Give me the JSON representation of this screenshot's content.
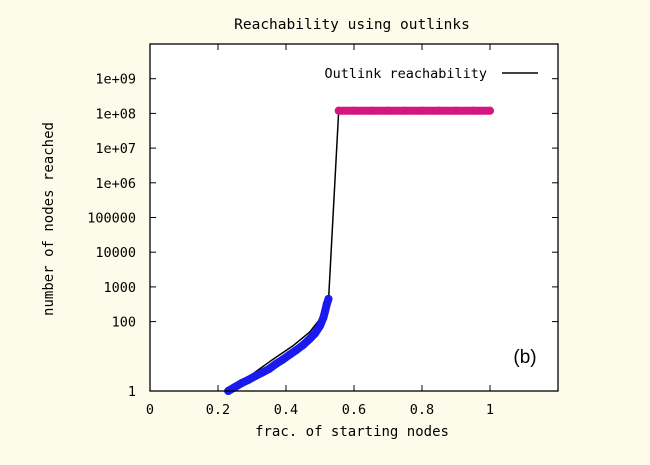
{
  "chart_data": {
    "type": "line",
    "title": "Reachability using outlinks",
    "xlabel": "frac. of starting nodes",
    "ylabel": "number of nodes reached",
    "xlim": [
      0,
      1.2
    ],
    "ylim": [
      1,
      10000000000
    ],
    "yscale": "log",
    "xticks": [
      0,
      0.2,
      0.4,
      0.6,
      0.8,
      1
    ],
    "xtick_labels": [
      "0",
      "0.2",
      "0.4",
      "0.6",
      "0.8",
      "1"
    ],
    "yticks": [
      1,
      100,
      1000,
      10000,
      100000,
      1000000,
      10000000,
      100000000,
      1000000000
    ],
    "ytick_labels": [
      "1",
      "100",
      "1000",
      "10000",
      "100000",
      "1e+06",
      "1e+07",
      "1e+08",
      "1e+09"
    ],
    "grid": false,
    "legend": {
      "position": "top-right",
      "entry": "Outlink reachability",
      "color": "#000000"
    },
    "annotation": "(b)",
    "series": [
      {
        "name": "Outlink reachability",
        "color": "#000000",
        "x": [
          0.23,
          0.3,
          0.36,
          0.42,
          0.47,
          0.5,
          0.52,
          0.525,
          0.555,
          1.0
        ],
        "y": [
          1,
          3,
          8,
          20,
          50,
          120,
          400,
          400,
          120000000,
          120000000
        ]
      },
      {
        "color": "#1a1aee",
        "markers": true,
        "x": [
          0.23,
          0.25,
          0.27,
          0.29,
          0.31,
          0.33,
          0.35,
          0.37,
          0.39,
          0.41,
          0.43,
          0.45,
          0.47,
          0.485,
          0.5,
          0.51,
          0.515,
          0.52,
          0.525
        ],
        "y": [
          1,
          1.3,
          1.7,
          2.1,
          2.7,
          3.4,
          4.3,
          6,
          8,
          11,
          15,
          21,
          32,
          45,
          75,
          130,
          200,
          320,
          450
        ]
      },
      {
        "color": "#d6167e",
        "markers": true,
        "x": [
          0.555,
          0.6,
          0.65,
          0.7,
          0.75,
          0.8,
          0.85,
          0.9,
          0.95,
          1.0
        ],
        "y": [
          120000000,
          120000000,
          120000000,
          120000000,
          120000000,
          120000000,
          120000000,
          120000000,
          120000000,
          120000000
        ]
      }
    ]
  }
}
